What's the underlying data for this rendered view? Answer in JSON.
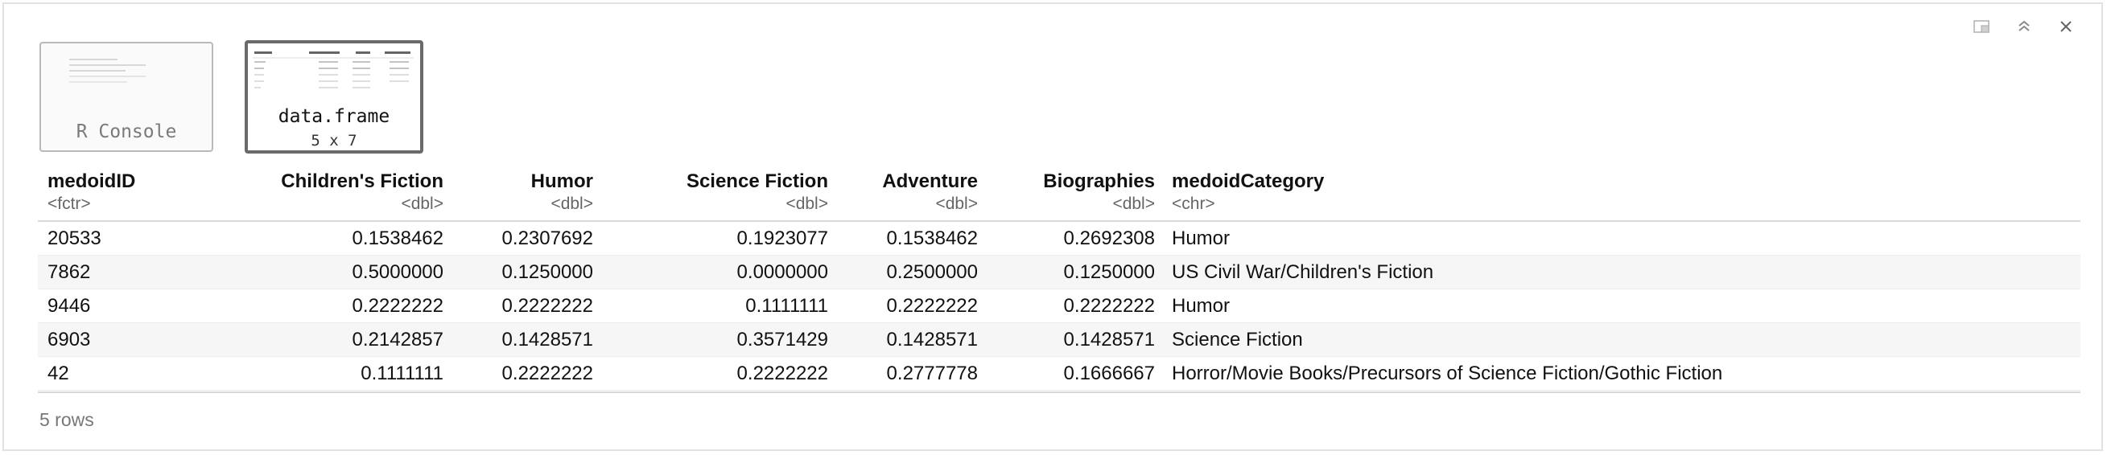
{
  "thumbnails": {
    "console": {
      "label": "R Console"
    },
    "data_frame": {
      "label": "data.frame",
      "dims": "5 x 7"
    }
  },
  "table": {
    "columns": [
      {
        "name": "medoidID",
        "type": "<fctr>"
      },
      {
        "name": "Children's Fiction",
        "type": "<dbl>"
      },
      {
        "name": "Humor",
        "type": "<dbl>"
      },
      {
        "name": "Science Fiction",
        "type": "<dbl>"
      },
      {
        "name": "Adventure",
        "type": "<dbl>"
      },
      {
        "name": "Biographies",
        "type": "<dbl>"
      },
      {
        "name": "medoidCategory",
        "type": "<chr>"
      }
    ],
    "rows": [
      [
        "20533",
        "0.1538462",
        "0.2307692",
        "0.1923077",
        "0.1538462",
        "0.2692308",
        "Humor"
      ],
      [
        "7862",
        "0.5000000",
        "0.1250000",
        "0.0000000",
        "0.2500000",
        "0.1250000",
        "US Civil War/Children's Fiction"
      ],
      [
        "9446",
        "0.2222222",
        "0.2222222",
        "0.1111111",
        "0.2222222",
        "0.2222222",
        "Humor"
      ],
      [
        "6903",
        "0.2142857",
        "0.1428571",
        "0.3571429",
        "0.1428571",
        "0.1428571",
        "Science Fiction"
      ],
      [
        "42",
        "0.1111111",
        "0.2222222",
        "0.2222222",
        "0.2777778",
        "0.1666667",
        "Horror/Movie Books/Precursors of Science Fiction/Gothic Fiction"
      ]
    ]
  },
  "footer": {
    "rows_label": "5 rows"
  },
  "icons": {
    "popout": "popout-icon",
    "collapse": "collapse-up-icon",
    "close": "close-icon"
  }
}
